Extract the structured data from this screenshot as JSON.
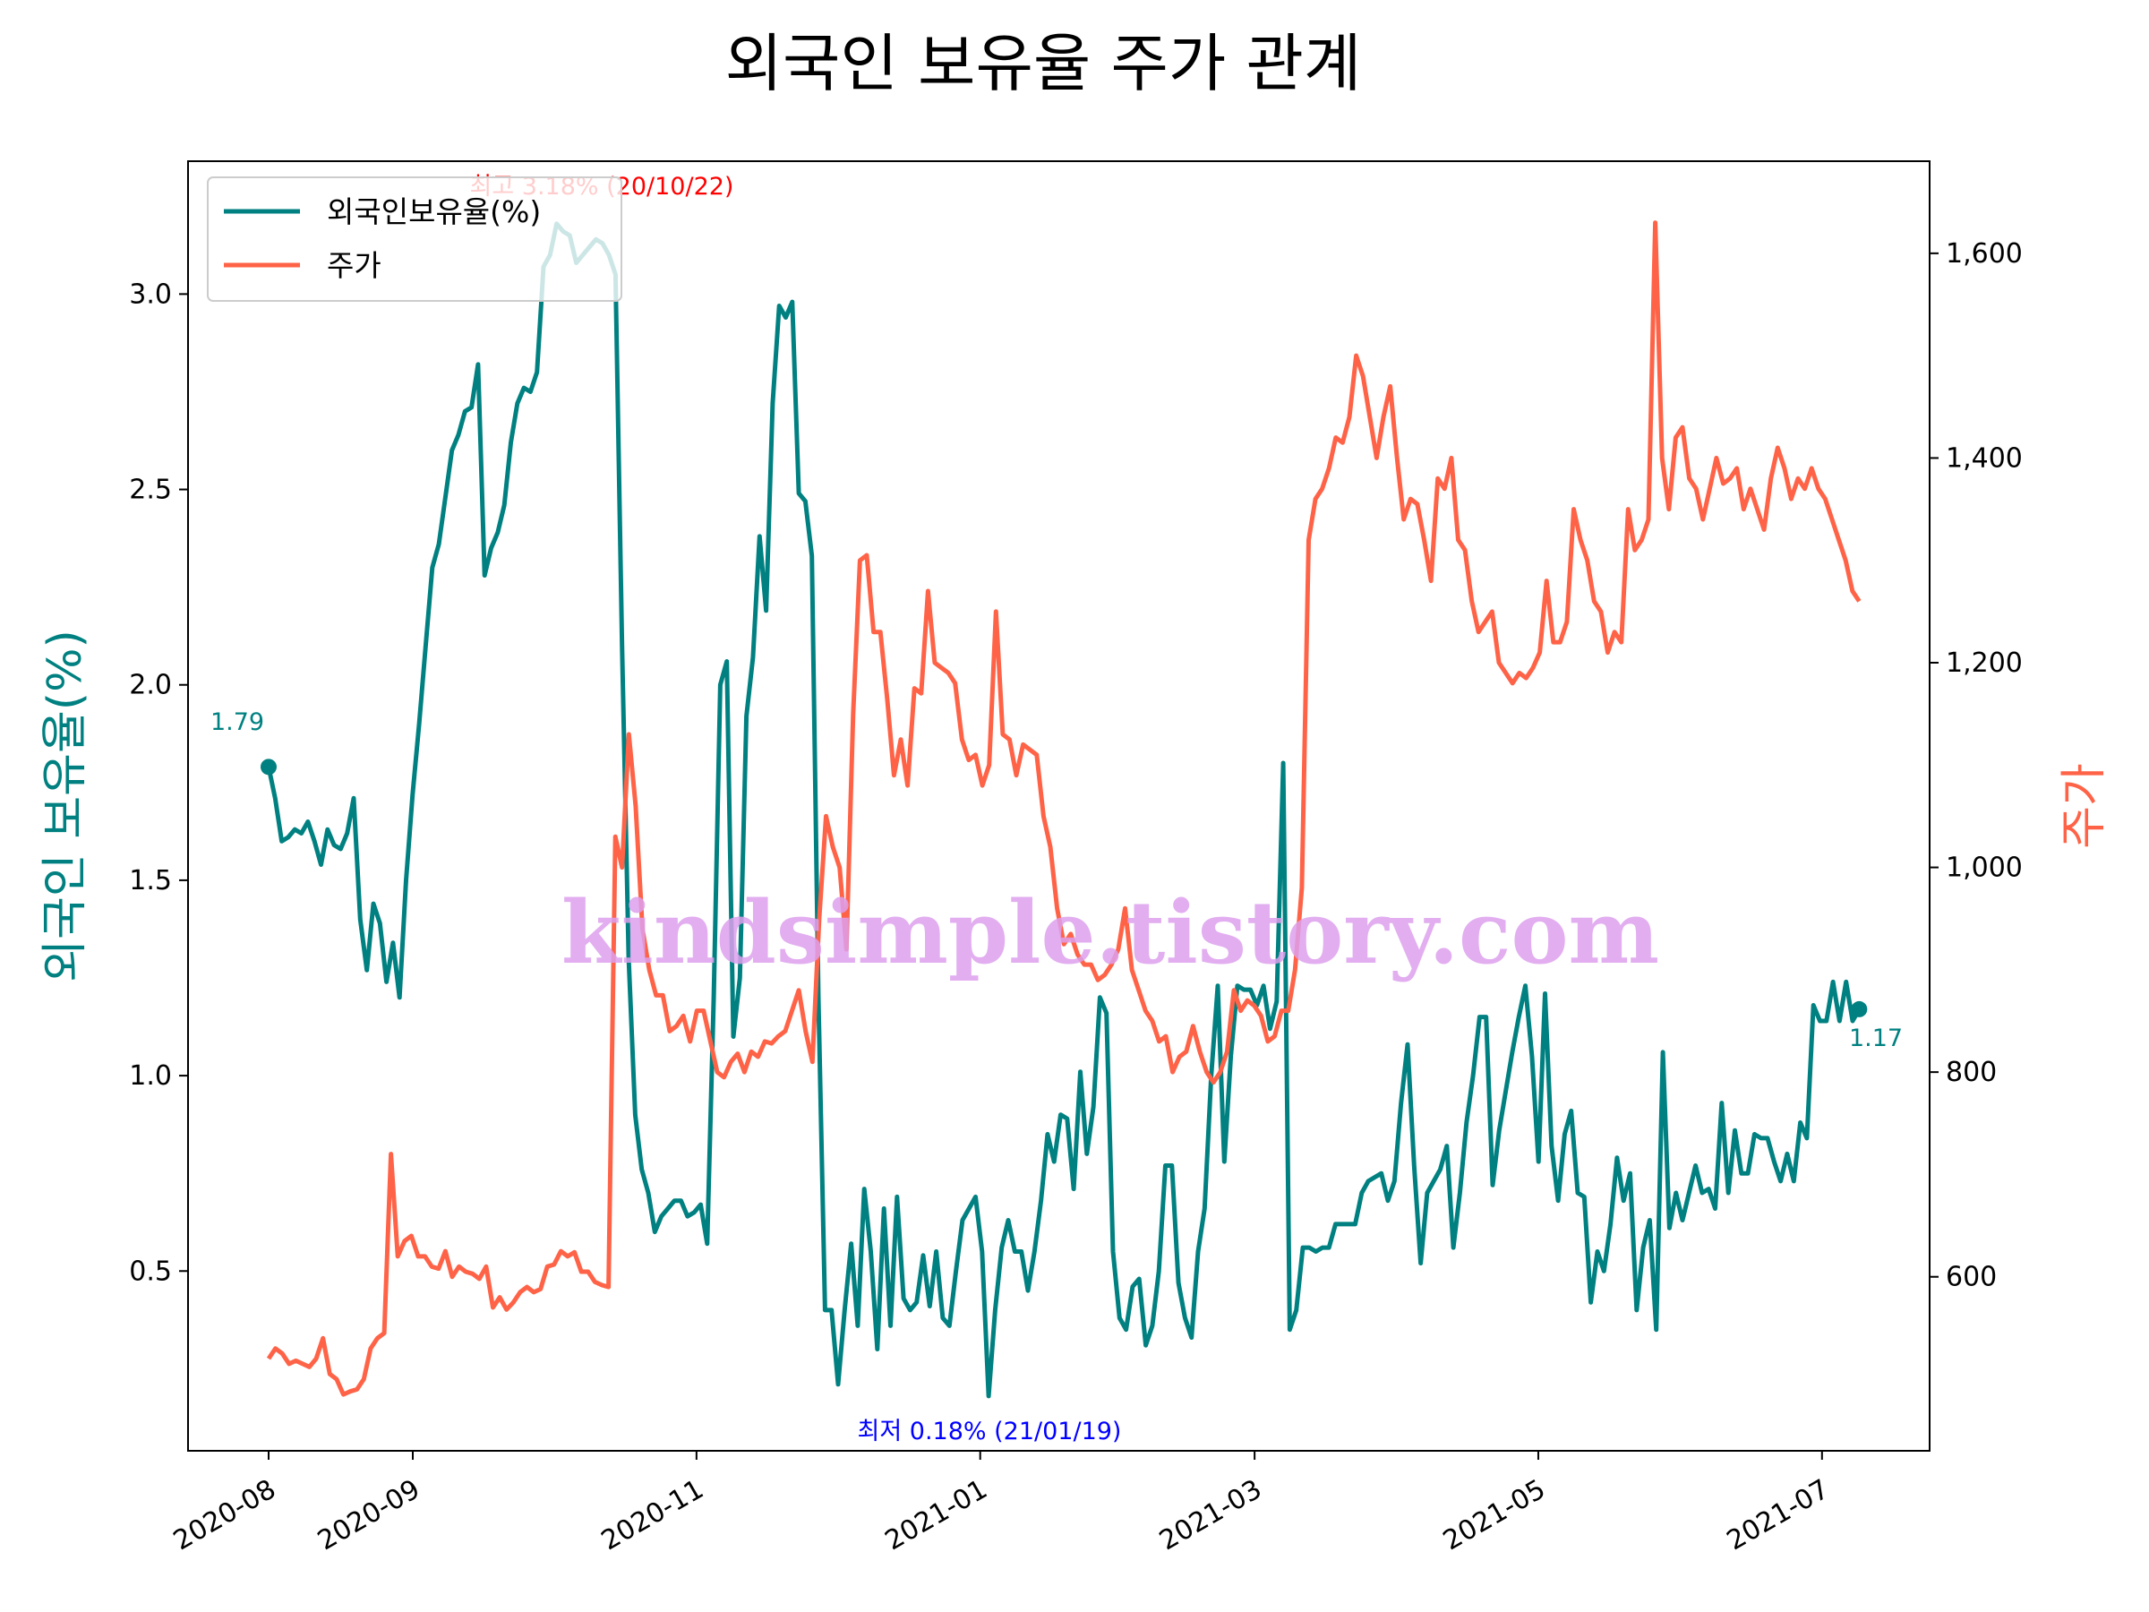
{
  "chart_data": {
    "type": "line",
    "title": "외국인 보유율 주가 관계",
    "xlabel": "",
    "ylabel": "외국인 보유율(%)",
    "ylabel_right": "주가",
    "x_ticks": [
      "2020-08",
      "2020-09",
      "2020-11",
      "2021-01",
      "2021-03",
      "2021-05",
      "2021-07"
    ],
    "y_ticks_left": [
      "0.5",
      "1.0",
      "1.5",
      "2.0",
      "2.5",
      "3.0"
    ],
    "y_ticks_right": [
      "600",
      "800",
      "1,000",
      "1,200",
      "1,400",
      "1,600"
    ],
    "ylim_left": [
      0.04,
      3.34
    ],
    "ylim_right": [
      430,
      1690
    ],
    "colors": {
      "foreign": "#008080",
      "price": "#ff6347",
      "max_anno": "#ff0000",
      "min_anno": "#0000ff"
    },
    "legend": [
      "외국인보유율(%)",
      "주가"
    ],
    "legend_position": "top-left",
    "annotations": {
      "start": "1.79",
      "end": "1.17",
      "max": "최고 3.18% (20/10/22)",
      "min": "최저 0.18% (21/01/19)"
    },
    "watermark": "kindsimple.tistory.com",
    "series": [
      {
        "name": "외국인보유율(%)",
        "axis": "left",
        "x_start_day": 0,
        "x_end_day": 342,
        "values": [
          1.79,
          1.71,
          1.6,
          1.61,
          1.63,
          1.62,
          1.65,
          1.6,
          1.54,
          1.63,
          1.59,
          1.58,
          1.62,
          1.71,
          1.4,
          1.27,
          1.44,
          1.39,
          1.24,
          1.34,
          1.2,
          1.5,
          1.72,
          1.9,
          2.1,
          2.3,
          2.36,
          2.48,
          2.6,
          2.64,
          2.7,
          2.71,
          2.82,
          2.28,
          2.35,
          2.39,
          2.46,
          2.62,
          2.72,
          2.76,
          2.75,
          2.8,
          3.07,
          3.1,
          3.18,
          3.16,
          3.15,
          3.08,
          3.1,
          3.12,
          3.14,
          3.13,
          3.1,
          3.05,
          2.1,
          1.3,
          0.9,
          0.76,
          0.7,
          0.6,
          0.64,
          0.66,
          0.68,
          0.68,
          0.64,
          0.65,
          0.67,
          0.57,
          1.2,
          2.0,
          2.06,
          1.1,
          1.25,
          1.92,
          2.07,
          2.38,
          2.19,
          2.72,
          2.97,
          2.94,
          2.98,
          2.49,
          2.47,
          2.33,
          1.2,
          0.4,
          0.4,
          0.21,
          0.4,
          0.57,
          0.36,
          0.71,
          0.55,
          0.3,
          0.66,
          0.36,
          0.69,
          0.43,
          0.4,
          0.42,
          0.54,
          0.41,
          0.55,
          0.38,
          0.36,
          0.5,
          0.63,
          0.66,
          0.69,
          0.55,
          0.18,
          0.4,
          0.56,
          0.63,
          0.55,
          0.55,
          0.45,
          0.55,
          0.68,
          0.85,
          0.78,
          0.9,
          0.89,
          0.71,
          1.01,
          0.8,
          0.92,
          1.2,
          1.16,
          0.55,
          0.38,
          0.35,
          0.46,
          0.48,
          0.31,
          0.36,
          0.5,
          0.77,
          0.77,
          0.47,
          0.38,
          0.33,
          0.55,
          0.66,
          1.0,
          1.23,
          0.78,
          1.05,
          1.23,
          1.22,
          1.22,
          1.18,
          1.23,
          1.12,
          1.19,
          1.8,
          0.35,
          0.4,
          0.56,
          0.56,
          0.55,
          0.56,
          0.56,
          0.62,
          0.62,
          0.62,
          0.62,
          0.7,
          0.73,
          0.74,
          0.75,
          0.68,
          0.73,
          0.93,
          1.08,
          0.77,
          0.52,
          0.7,
          0.73,
          0.76,
          0.82,
          0.56,
          0.7,
          0.88,
          1.0,
          1.15,
          1.15,
          0.72,
          0.86,
          0.96,
          1.06,
          1.15,
          1.23,
          1.05,
          0.78,
          1.21,
          0.82,
          0.68,
          0.85,
          0.91,
          0.7,
          0.69,
          0.42,
          0.55,
          0.5,
          0.62,
          0.79,
          0.68,
          0.75,
          0.4,
          0.56,
          0.63,
          0.35,
          1.06,
          0.61,
          0.7,
          0.63,
          0.7,
          0.77,
          0.7,
          0.71,
          0.66,
          0.93,
          0.7,
          0.86,
          0.75,
          0.75,
          0.85,
          0.84,
          0.84,
          0.78,
          0.73,
          0.8,
          0.73,
          0.88,
          0.84,
          1.18,
          1.14,
          1.14,
          1.24,
          1.14,
          1.24,
          1.14,
          1.17
        ]
      },
      {
        "name": "주가",
        "axis": "right",
        "x_start_day": 0,
        "x_end_day": 342,
        "values": [
          520,
          530,
          525,
          515,
          518,
          515,
          512,
          520,
          540,
          505,
          500,
          485,
          488,
          490,
          500,
          530,
          540,
          545,
          720,
          620,
          635,
          640,
          620,
          620,
          610,
          608,
          625,
          600,
          610,
          605,
          603,
          598,
          610,
          570,
          580,
          568,
          575,
          585,
          590,
          585,
          588,
          610,
          612,
          625,
          620,
          624,
          605,
          605,
          595,
          592,
          590,
          1030,
          1000,
          1130,
          1060,
          940,
          900,
          875,
          875,
          840,
          845,
          855,
          830,
          860,
          860,
          830,
          800,
          795,
          810,
          818,
          800,
          820,
          815,
          830,
          828,
          835,
          840,
          860,
          880,
          840,
          810,
          950,
          1050,
          1020,
          1000,
          920,
          1150,
          1300,
          1305,
          1230,
          1230,
          1165,
          1090,
          1125,
          1080,
          1175,
          1170,
          1270,
          1200,
          1195,
          1190,
          1180,
          1125,
          1105,
          1110,
          1080,
          1100,
          1250,
          1130,
          1125,
          1090,
          1120,
          1115,
          1110,
          1050,
          1020,
          960,
          925,
          935,
          915,
          905,
          905,
          890,
          895,
          905,
          920,
          960,
          900,
          880,
          860,
          850,
          830,
          835,
          800,
          815,
          820,
          845,
          820,
          800,
          790,
          800,
          820,
          880,
          860,
          870,
          865,
          855,
          830,
          835,
          860,
          860,
          900,
          980,
          1320,
          1360,
          1370,
          1390,
          1420,
          1415,
          1440,
          1500,
          1480,
          1440,
          1400,
          1440,
          1470,
          1400,
          1340,
          1360,
          1355,
          1320,
          1280,
          1380,
          1370,
          1400,
          1320,
          1310,
          1260,
          1230,
          1240,
          1250,
          1200,
          1190,
          1180,
          1190,
          1185,
          1195,
          1210,
          1280,
          1220,
          1220,
          1240,
          1350,
          1320,
          1300,
          1260,
          1250,
          1210,
          1230,
          1220,
          1350,
          1310,
          1320,
          1340,
          1630,
          1400,
          1350,
          1420,
          1430,
          1380,
          1370,
          1340,
          1370,
          1400,
          1375,
          1380,
          1390,
          1350,
          1370,
          1350,
          1330,
          1380,
          1410,
          1390,
          1360,
          1380,
          1370,
          1390,
          1370,
          1360,
          1340,
          1320,
          1300,
          1270,
          1260
        ]
      }
    ]
  }
}
